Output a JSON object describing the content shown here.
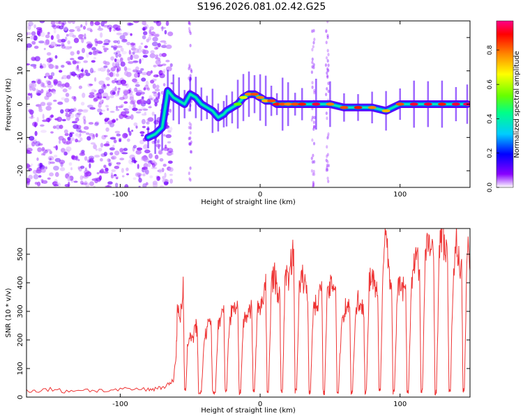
{
  "chart_data": [
    {
      "type": "heatmap",
      "title": "S196.2026.081.02.42.G25",
      "xlabel": "Height of straight line (km)",
      "ylabel": "Frequency (Hz)",
      "xlim": [
        -167,
        150
      ],
      "ylim": [
        -25,
        25
      ],
      "x_ticks": [
        -100,
        0,
        100
      ],
      "y_ticks": [
        -20,
        -10,
        0,
        10,
        20
      ],
      "colorbar_label": "Normalized spectral amplitude",
      "colorbar_ticks": [
        0.0,
        0.2,
        0.4,
        0.6,
        0.8
      ],
      "colorbar_range": [
        0,
        0.97
      ],
      "ridge": {
        "x": [
          -80,
          -75,
          -70,
          -66,
          -62,
          -58,
          -54,
          -50,
          -46,
          -42,
          -38,
          -34,
          -30,
          -26,
          -24,
          -20,
          -16,
          -12,
          -8,
          -4,
          0,
          4,
          8,
          12,
          16,
          20,
          25,
          30,
          40,
          50,
          60,
          70,
          80,
          90,
          100,
          110,
          120,
          130,
          140,
          148
        ],
        "y": [
          -10,
          -9,
          -7,
          4,
          2,
          1,
          0,
          3,
          2,
          0,
          -1,
          -2,
          -4,
          -3,
          -2,
          -1,
          0,
          2,
          3,
          3,
          2,
          1,
          1,
          0,
          0,
          0,
          0,
          0,
          0,
          0,
          -1,
          -1,
          -1,
          -2,
          0,
          0,
          0,
          0,
          0,
          0
        ],
        "amplitude": [
          0.3,
          0.35,
          0.3,
          0.3,
          0.3,
          0.35,
          0.35,
          0.4,
          0.35,
          0.3,
          0.35,
          0.4,
          0.3,
          0.35,
          0.4,
          0.5,
          0.55,
          0.65,
          0.8,
          0.85,
          0.8,
          0.75,
          0.85,
          0.9,
          0.85,
          0.8,
          0.85,
          0.9,
          0.95,
          0.8,
          0.85,
          0.9,
          0.8,
          0.75,
          0.85,
          0.95,
          0.95,
          0.9,
          0.95,
          0.97
        ]
      }
    },
    {
      "type": "line",
      "xlabel": "Height of straight line (km)",
      "ylabel": "SNR (10 * v/v)",
      "xlim": [
        -167,
        150
      ],
      "ylim": [
        0,
        590
      ],
      "x_ticks": [
        -100,
        0,
        100
      ],
      "y_ticks": [
        0,
        100,
        200,
        300,
        400,
        500
      ],
      "series": [
        {
          "name": "SNR",
          "color": "#ee3333",
          "x": [
            -167,
            -160,
            -150,
            -140,
            -130,
            -120,
            -110,
            -100,
            -90,
            -80,
            -75,
            -70,
            -65,
            -62,
            -60,
            -59,
            -57,
            -55,
            -54,
            -53,
            -52,
            -50,
            -48,
            -46,
            -45,
            -44,
            -42,
            -40,
            -38,
            -36,
            -35,
            -34,
            -32,
            -30,
            -28,
            -26,
            -25,
            -24,
            -22,
            -20,
            -18,
            -16,
            -15,
            -14,
            -12,
            -10,
            -8,
            -6,
            -5,
            -4,
            -2,
            0,
            2,
            4,
            5,
            6,
            8,
            10,
            12,
            14,
            15,
            16,
            18,
            20,
            22,
            24,
            25,
            26,
            28,
            30,
            32,
            34,
            35,
            36,
            38,
            40,
            42,
            44,
            45,
            46,
            48,
            50,
            52,
            54,
            55,
            56,
            58,
            60,
            62,
            64,
            65,
            66,
            68,
            70,
            72,
            74,
            75,
            76,
            78,
            80,
            82,
            84,
            85,
            86,
            88,
            90,
            92,
            94,
            95,
            96,
            98,
            100,
            102,
            104,
            105,
            106,
            108,
            110,
            112,
            114,
            115,
            116,
            118,
            120,
            122,
            124,
            125,
            126,
            128,
            130,
            132,
            134,
            135,
            136,
            138,
            140,
            142,
            144,
            145,
            146,
            148,
            150
          ],
          "y": [
            25,
            22,
            28,
            20,
            26,
            24,
            22,
            25,
            28,
            26,
            30,
            35,
            45,
            60,
            150,
            330,
            280,
            380,
            20,
            30,
            180,
            220,
            200,
            250,
            230,
            15,
            20,
            200,
            230,
            280,
            250,
            15,
            20,
            250,
            280,
            300,
            20,
            25,
            270,
            300,
            330,
            320,
            15,
            20,
            260,
            280,
            300,
            320,
            20,
            25,
            300,
            320,
            350,
            390,
            15,
            20,
            400,
            430,
            380,
            350,
            15,
            25,
            450,
            400,
            480,
            500,
            20,
            30,
            380,
            420,
            400,
            350,
            15,
            20,
            330,
            320,
            350,
            400,
            20,
            15,
            360,
            380,
            400,
            390,
            15,
            20,
            250,
            300,
            330,
            310,
            15,
            20,
            280,
            350,
            300,
            320,
            15,
            25,
            400,
            420,
            380,
            360,
            20,
            25,
            520,
            580,
            450,
            380,
            15,
            20,
            350,
            420,
            380,
            400,
            20,
            15,
            380,
            460,
            500,
            420,
            20,
            25,
            480,
            550,
            520,
            480,
            15,
            20,
            500,
            580,
            520,
            470,
            15,
            25,
            420,
            560,
            480,
            450,
            20,
            30,
            520,
            500
          ]
        }
      ]
    }
  ]
}
